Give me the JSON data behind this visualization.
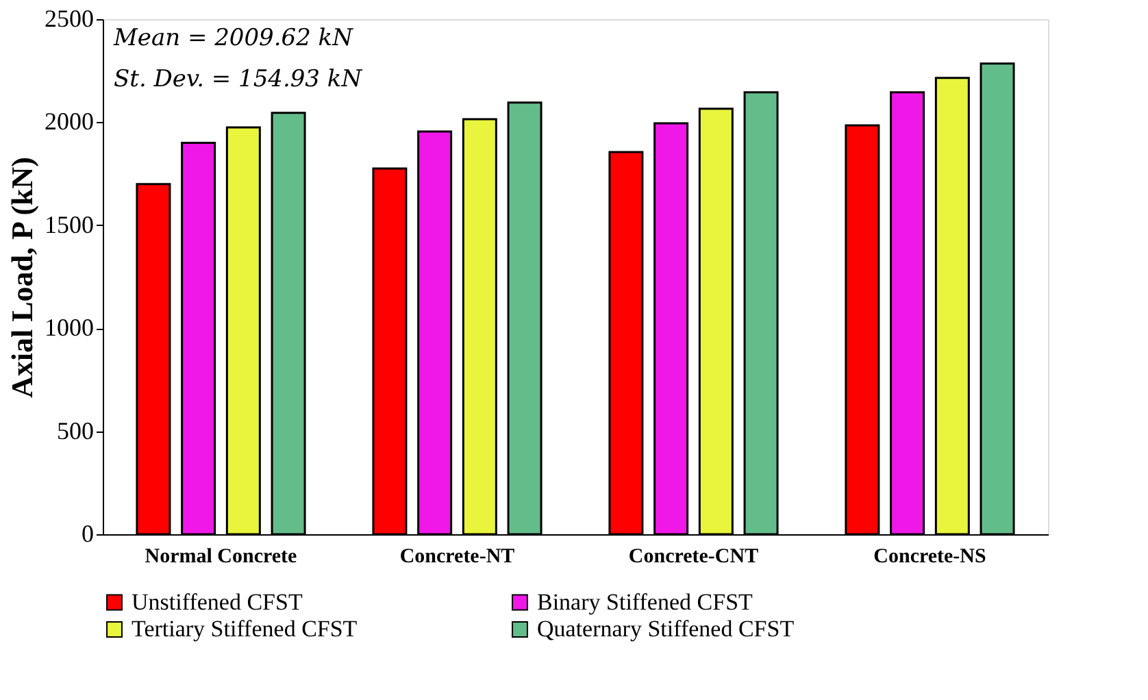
{
  "chart_data": {
    "type": "bar",
    "ylabel": "Axial Load, P (kN)",
    "categories": [
      "Normal Concrete",
      "Concrete-NT",
      "Concrete-CNT",
      "Concrete-NS"
    ],
    "series": [
      {
        "name": "Unstiffened CFST",
        "color": "#ff0000",
        "values": [
          1700,
          1775,
          1855,
          1985
        ]
      },
      {
        "name": "Binary Stiffened CFST",
        "color": "#f018e8",
        "values": [
          1900,
          1955,
          1995,
          2145
        ]
      },
      {
        "name": "Tertiary Stiffened CFST",
        "color": "#e8f53c",
        "values": [
          1975,
          2015,
          2065,
          2215
        ]
      },
      {
        "name": "Quaternary Stiffened CFST",
        "color": "#63bd8b",
        "values": [
          2045,
          2095,
          2145,
          2285
        ]
      }
    ],
    "ylim": [
      0,
      2500
    ],
    "yticks": [
      0,
      500,
      1000,
      1500,
      2000,
      2500
    ],
    "grid": false,
    "legend": "bottom",
    "annotations": [
      "Mean = 2009.62 kN",
      "St. Dev. = 154.93 kN"
    ]
  }
}
